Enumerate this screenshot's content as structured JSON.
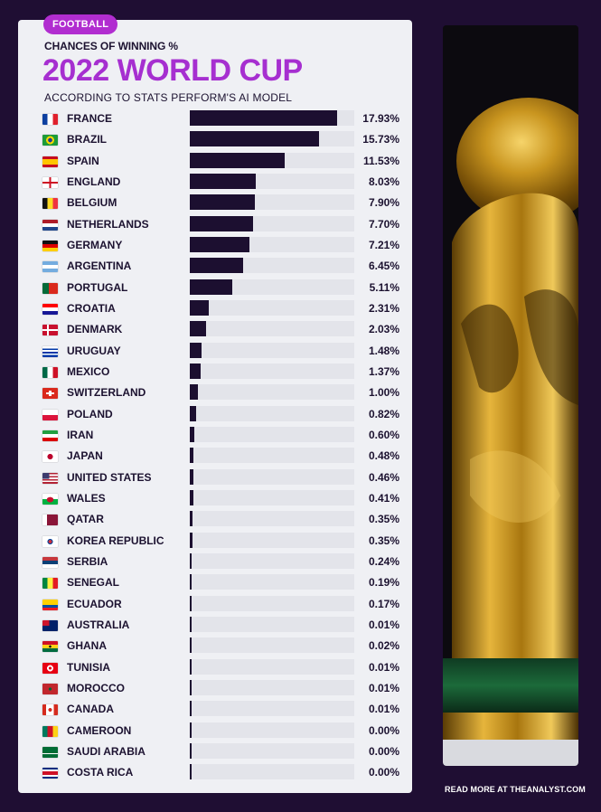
{
  "header": {
    "badge": "FOOTBALL",
    "subtitle": "CHANCES OF WINNING %",
    "title": "2022 WORLD CUP",
    "source": "ACCORDING TO STATS PERFORM'S AI MODEL"
  },
  "footer": {
    "text": "READ MORE AT THEANALYST.COM"
  },
  "colors": {
    "background": "#1f0e33",
    "card": "#eff0f4",
    "accent": "#a62fd0",
    "bar": "#1c0f30",
    "track": "#e3e4ea"
  },
  "chart_data": {
    "type": "bar",
    "orientation": "horizontal",
    "title": "2022 WORLD CUP",
    "subtitle": "CHANCES OF WINNING %",
    "xlim": [
      0,
      20
    ],
    "categories": [
      "FRANCE",
      "BRAZIL",
      "SPAIN",
      "ENGLAND",
      "BELGIUM",
      "NETHERLANDS",
      "GERMANY",
      "ARGENTINA",
      "PORTUGAL",
      "CROATIA",
      "DENMARK",
      "URUGUAY",
      "MEXICO",
      "SWITZERLAND",
      "POLAND",
      "IRAN",
      "JAPAN",
      "UNITED STATES",
      "WALES",
      "QATAR",
      "KOREA REPUBLIC",
      "SERBIA",
      "SENEGAL",
      "ECUADOR",
      "AUSTRALIA",
      "GHANA",
      "TUNISIA",
      "MOROCCO",
      "CANADA",
      "CAMEROON",
      "SAUDI ARABIA",
      "COSTA RICA"
    ],
    "values": [
      17.93,
      15.73,
      11.53,
      8.03,
      7.9,
      7.7,
      7.21,
      6.45,
      5.11,
      2.31,
      2.03,
      1.48,
      1.37,
      1.0,
      0.82,
      0.6,
      0.48,
      0.46,
      0.41,
      0.35,
      0.35,
      0.24,
      0.19,
      0.17,
      0.01,
      0.02,
      0.01,
      0.01,
      0.01,
      0.0,
      0.0,
      0.0
    ],
    "labels": [
      "17.93%",
      "15.73%",
      "11.53%",
      "8.03%",
      "7.90%",
      "7.70%",
      "7.21%",
      "6.45%",
      "5.11%",
      "2.31%",
      "2.03%",
      "1.48%",
      "1.37%",
      "1.00%",
      "0.82%",
      "0.60%",
      "0.48%",
      "0.46%",
      "0.41%",
      "0.35%",
      "0.35%",
      "0.24%",
      "0.19%",
      "0.17%",
      "0.01%",
      "0.02%",
      "0.01%",
      "0.01%",
      "0.01%",
      "0.00%",
      "0.00%",
      "0.00%"
    ],
    "flags": [
      "france-flag",
      "brazil-flag",
      "spain-flag",
      "england-flag",
      "belgium-flag",
      "netherlands-flag",
      "germany-flag",
      "argentina-flag",
      "portugal-flag",
      "croatia-flag",
      "denmark-flag",
      "uruguay-flag",
      "mexico-flag",
      "switzerland-flag",
      "poland-flag",
      "iran-flag",
      "japan-flag",
      "united-states-flag",
      "wales-flag",
      "qatar-flag",
      "korea-republic-flag",
      "serbia-flag",
      "senegal-flag",
      "ecuador-flag",
      "australia-flag",
      "ghana-flag",
      "tunisia-flag",
      "morocco-flag",
      "canada-flag",
      "cameroon-flag",
      "saudi-arabia-flag",
      "costa-rica-flag"
    ]
  }
}
